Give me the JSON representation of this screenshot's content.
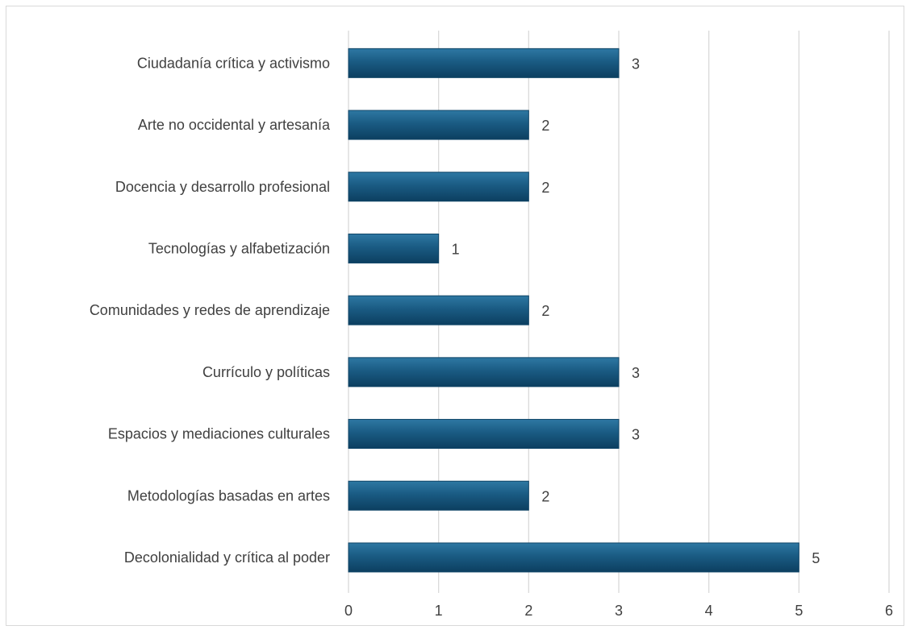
{
  "chart_data": {
    "type": "bar",
    "orientation": "horizontal",
    "categories": [
      "Ciudadanía crítica y activismo",
      "Arte no occidental y artesanía",
      "Docencia y desarrollo profesional",
      "Tecnologías y alfabetización",
      "Comunidades y redes de aprendizaje",
      "Currículo y políticas",
      "Espacios y mediaciones culturales",
      "Metodologías basadas en artes",
      "Decolonialidad y crítica al poder"
    ],
    "values": [
      3,
      2,
      2,
      1,
      2,
      3,
      3,
      2,
      5
    ],
    "xlim": [
      0,
      6
    ],
    "ticks": [
      "0",
      "1",
      "2",
      "3",
      "4",
      "5",
      "6"
    ],
    "data_labels": true,
    "grid": "vertical",
    "legend": "none",
    "title": "",
    "xlabel": "",
    "ylabel": "",
    "colors": {
      "bar": "#1f5f86",
      "bar_dark": "#0f4466",
      "grid": "#d9d9d9",
      "text": "#404040"
    }
  }
}
